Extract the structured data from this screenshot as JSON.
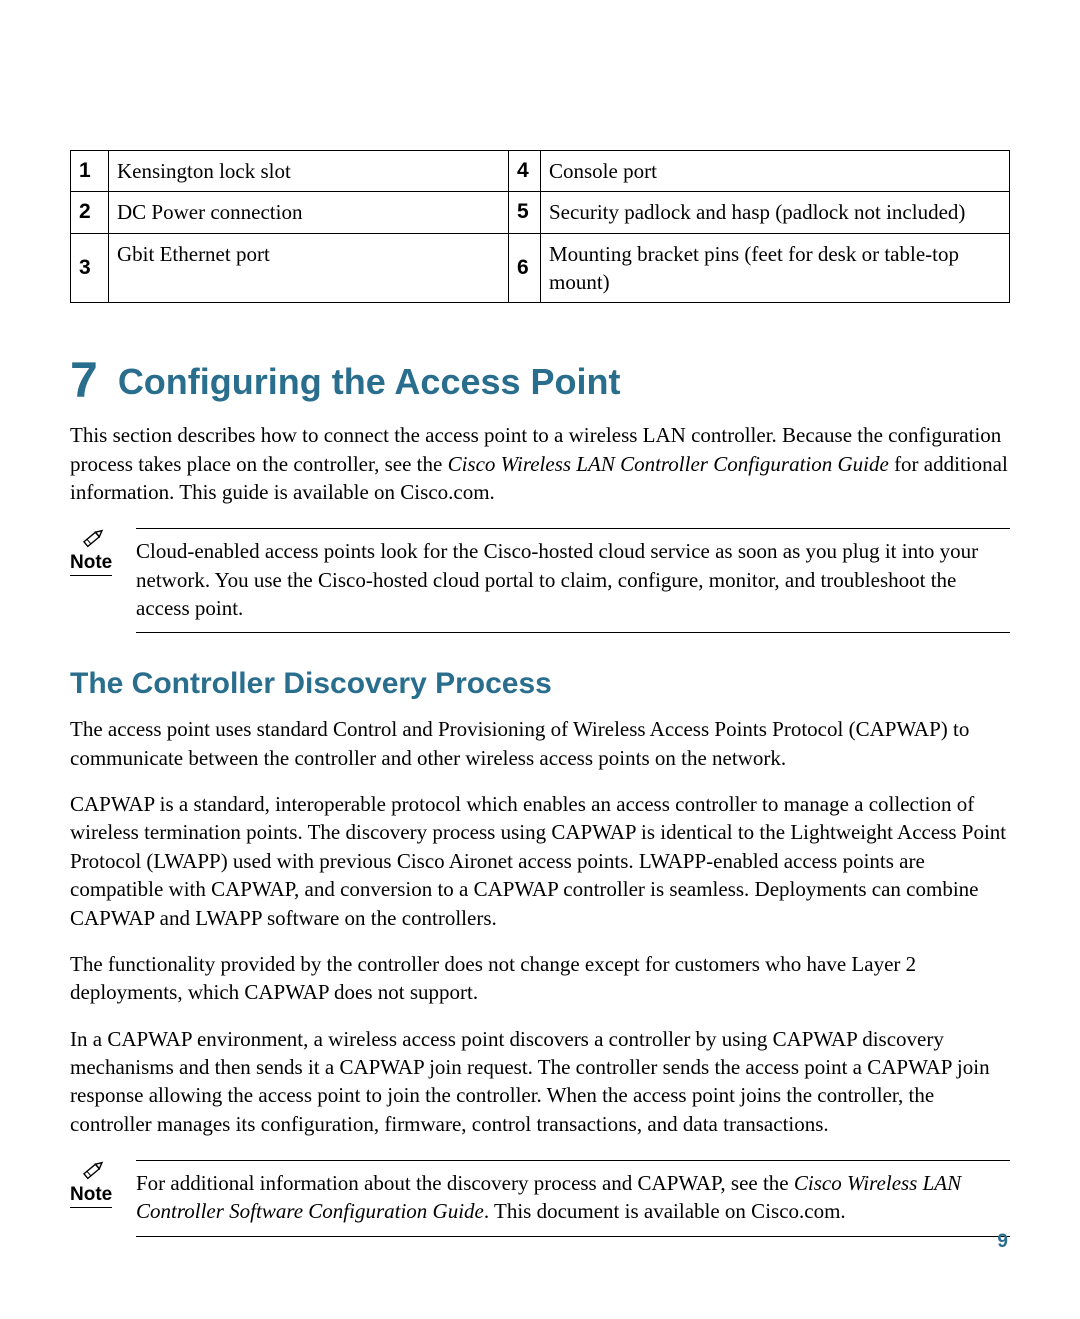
{
  "colors": {
    "heading": "#2a6e8e",
    "text": "#000000",
    "background": "#ffffff",
    "border": "#000000"
  },
  "ports_table": {
    "rows": [
      {
        "n1": "1",
        "d1": "Kensington lock slot",
        "n2": "4",
        "d2": "Console port"
      },
      {
        "n1": "2",
        "d1": "DC Power connection",
        "n2": "5",
        "d2": "Security padlock and hasp (padlock not included)"
      },
      {
        "n1": "3",
        "d1": "Gbit Ethernet port",
        "n2": "6",
        "d2": "Mounting bracket pins (feet for desk or table-top mount)"
      }
    ]
  },
  "section7": {
    "number": "7",
    "title": "Configuring the Access Point",
    "intro_before_ital": "This section describes how to connect the access point to a wireless LAN controller. Because the configuration process takes place on the controller, see the ",
    "intro_ital": "Cisco Wireless LAN Controller Configuration Guide",
    "intro_after_ital": " for additional information. This guide is available on Cisco.com."
  },
  "note1": {
    "label": "Note",
    "text": "Cloud-enabled access points look for the Cisco-hosted cloud service as soon as you plug it into your network. You use the Cisco-hosted cloud portal to claim, configure, monitor, and troubleshoot the access point."
  },
  "discovery": {
    "heading": "The Controller Discovery Process",
    "p1": "The access point uses standard Control and Provisioning of Wireless Access Points Protocol (CAPWAP) to communicate between the controller and other wireless access points on the network.",
    "p2": "CAPWAP is a standard, interoperable protocol which enables an access controller to manage a collection of wireless termination points. The discovery process using CAPWAP is identical to the Lightweight Access Point Protocol (LWAPP) used with previous Cisco Aironet access points. LWAPP-enabled access points are compatible with CAPWAP, and conversion to a CAPWAP controller is seamless. Deployments can combine CAPWAP and LWAPP software on the controllers.",
    "p3": "The functionality provided by the controller does not change except for customers who have Layer 2 deployments, which CAPWAP does not support.",
    "p4": "In a CAPWAP environment, a wireless access point discovers a controller by using CAPWAP discovery mechanisms and then sends it a CAPWAP join request. The controller sends the access point a CAPWAP join response allowing the access point to join the controller. When the access point joins the controller, the controller manages its configuration, firmware, control transactions, and data transactions."
  },
  "note2": {
    "label": "Note",
    "text_before_ital": "For additional information about the discovery process and CAPWAP, see the ",
    "text_ital": "Cisco Wireless LAN Controller Software Configuration Guide",
    "text_after_ital": ". This document is available on Cisco.com."
  },
  "page_number": "9"
}
